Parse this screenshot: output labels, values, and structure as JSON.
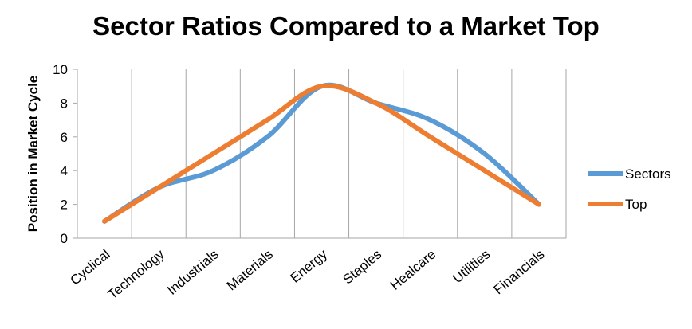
{
  "chart_data": {
    "type": "line",
    "title": "Sector Ratios Compared to a Market Top",
    "xlabel": "",
    "ylabel": "Position in Market Cycle",
    "ylim": [
      0,
      10
    ],
    "yticks": [
      0,
      2,
      4,
      6,
      8,
      10
    ],
    "categories": [
      "Cyclical",
      "Technology",
      "Industrials",
      "Materials",
      "Energy",
      "Staples",
      "Healcare",
      "Utilities",
      "Financials"
    ],
    "series": [
      {
        "name": "Sectors",
        "color": "#5B9BD5",
        "values": [
          1,
          3,
          4,
          6,
          9,
          8,
          7,
          5,
          2
        ]
      },
      {
        "name": "Top",
        "color": "#ED7D31",
        "values": [
          1,
          3,
          5,
          7,
          9,
          8,
          6,
          4,
          2
        ]
      }
    ],
    "grid": "vertical",
    "legend": "right",
    "smooth": true
  }
}
